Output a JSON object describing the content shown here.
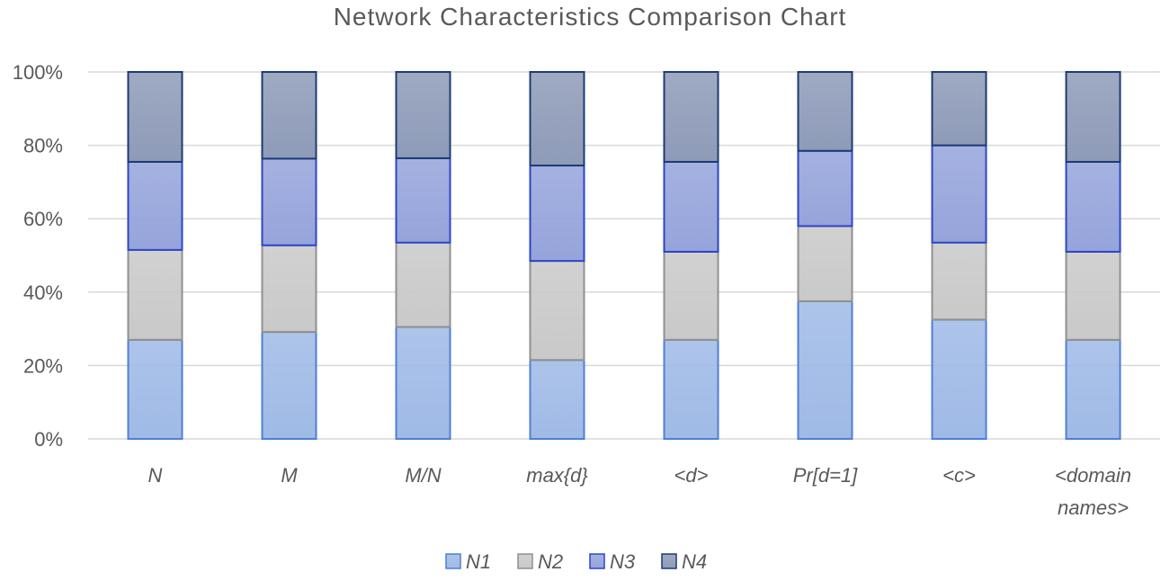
{
  "chart_data": {
    "type": "bar",
    "stacked": true,
    "percent": true,
    "title": "Network Characteristics Comparison Chart",
    "categories": [
      [
        "N"
      ],
      [
        "M"
      ],
      [
        "M/N"
      ],
      [
        "max{d}"
      ],
      [
        "<d>"
      ],
      [
        "Pr[d=1]"
      ],
      [
        "<c>"
      ],
      [
        "<domain",
        "names>"
      ]
    ],
    "yticks": [
      "0%",
      "20%",
      "40%",
      "60%",
      "80%",
      "100%"
    ],
    "ylim": [
      0,
      100
    ],
    "grid": true,
    "legend_position": "bottom",
    "series": [
      {
        "name": "N1",
        "values": [
          27,
          29,
          30.5,
          21.5,
          27,
          37.5,
          32.5,
          27
        ],
        "fill": "#9fbae6",
        "stroke": "#4f7fd6"
      },
      {
        "name": "N2",
        "values": [
          24.5,
          23.5,
          23,
          27,
          24,
          20.5,
          21,
          24
        ],
        "fill": "#c9c9c9",
        "stroke": "#909090"
      },
      {
        "name": "N3",
        "values": [
          24,
          23.5,
          23,
          26,
          24.5,
          20.5,
          26.5,
          24.5
        ],
        "fill": "#95a4db",
        "stroke": "#2c46c8"
      },
      {
        "name": "N4",
        "values": [
          24.5,
          23.5,
          23.5,
          25.5,
          24.5,
          21.5,
          20,
          24.5
        ],
        "fill": "#8e9bb8",
        "stroke": "#1d3b74"
      }
    ]
  }
}
